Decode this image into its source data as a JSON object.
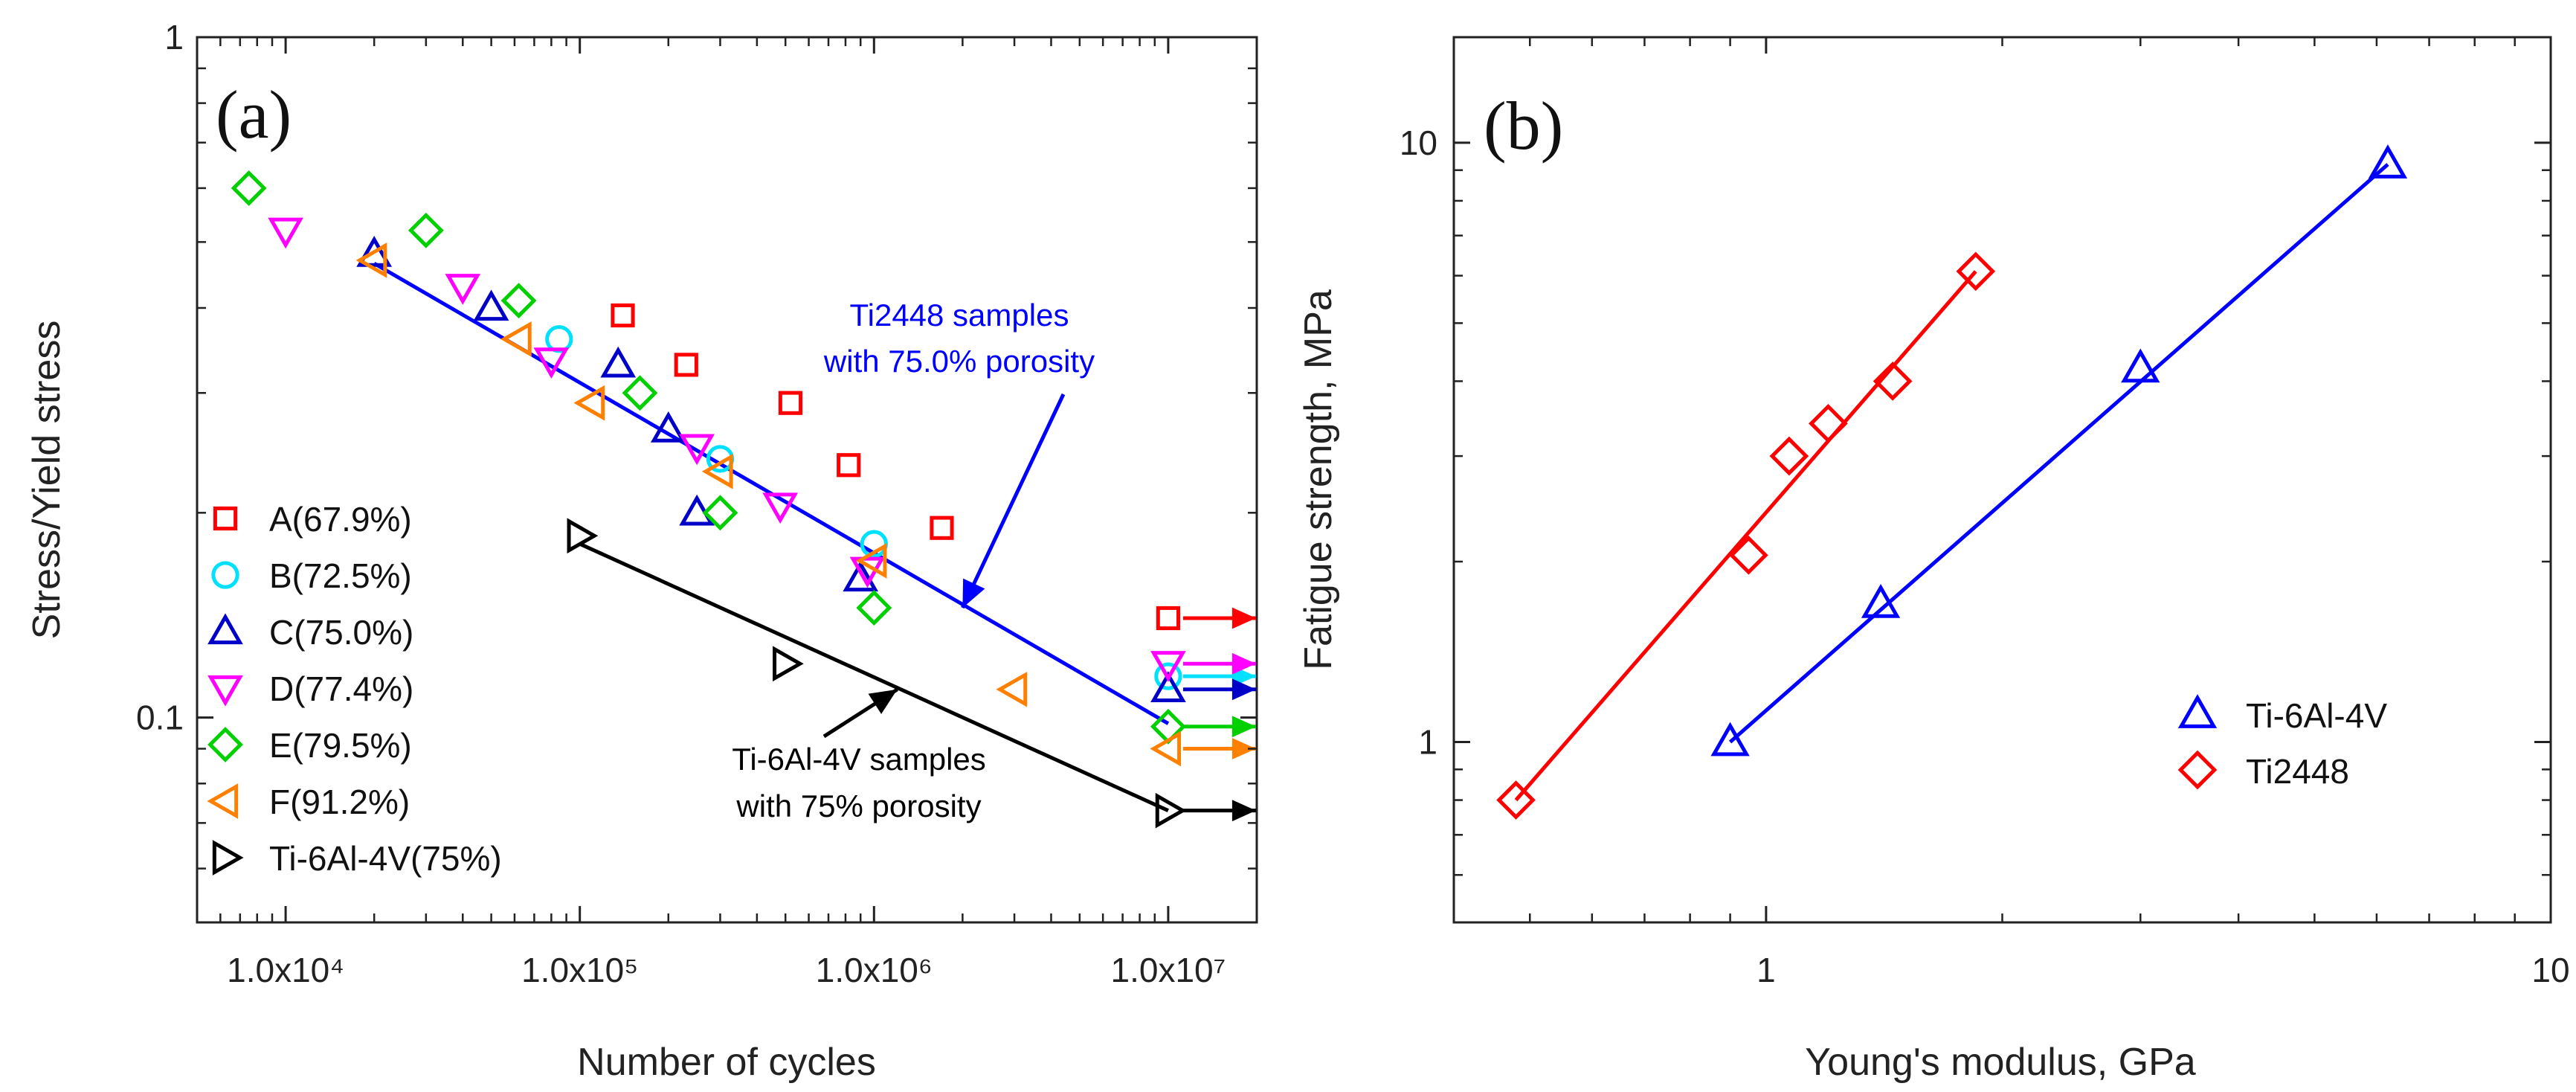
{
  "colors": {
    "A": "#ff0000",
    "B": "#00e0ff",
    "C": "#0000c8",
    "D": "#ff00ff",
    "E": "#00d000",
    "F": "#ff8000",
    "T": "#000000",
    "line_ti2448": "#0000ff",
    "line_ti64": "#000000",
    "b_ti64": "#0000ff",
    "b_ti2448": "#ff0000"
  },
  "chart_data": [
    {
      "panel_label": "(a)",
      "type": "scatter",
      "xscale": "log",
      "yscale": "log",
      "xlim": [
        5000,
        20000000
      ],
      "ylim": [
        0.05,
        1
      ],
      "xlabel": "Number of cycles",
      "ylabel": "Stress/Yield stress",
      "xticks": [
        {
          "v": 10000,
          "label": "1.0x10⁴"
        },
        {
          "v": 100000,
          "label": "1.0x10⁵"
        },
        {
          "v": 1000000,
          "label": "1.0x10⁶"
        },
        {
          "v": 10000000,
          "label": "1.0x10⁷"
        }
      ],
      "yticks": [
        {
          "v": 0.1,
          "label": "0.1"
        },
        {
          "v": 1,
          "label": "1"
        }
      ],
      "series": [
        {
          "key": "A",
          "name": "A(67.9%)",
          "marker": "square",
          "points": [
            [
              140000,
              0.39
            ],
            [
              230000,
              0.33
            ],
            [
              520000,
              0.29
            ],
            [
              820000,
              0.235
            ],
            [
              1700000,
              0.19
            ]
          ],
          "runouts": [
            [
              10000000,
              0.14
            ]
          ]
        },
        {
          "key": "B",
          "name": "B(72.5%)",
          "marker": "circle",
          "points": [
            [
              85000,
              0.36
            ],
            [
              300000,
              0.24
            ],
            [
              1000000,
              0.18
            ]
          ],
          "runouts": [
            [
              10000000,
              0.115
            ]
          ]
        },
        {
          "key": "C",
          "name": "C(75.0%)",
          "marker": "triangle-up",
          "points": [
            [
              20000,
              0.48
            ],
            [
              50000,
              0.4
            ],
            [
              135000,
              0.33
            ],
            [
              200000,
              0.265
            ],
            [
              250000,
              0.2
            ],
            [
              900000,
              0.16
            ]
          ],
          "runouts": [
            [
              10000000,
              0.11
            ]
          ]
        },
        {
          "key": "D",
          "name": "D(77.4%)",
          "marker": "triangle-down",
          "points": [
            [
              10000,
              0.52
            ],
            [
              40000,
              0.43
            ],
            [
              80000,
              0.335
            ],
            [
              250000,
              0.25
            ],
            [
              480000,
              0.205
            ],
            [
              950000,
              0.165
            ]
          ],
          "runouts": [
            [
              10000000,
              0.12
            ]
          ]
        },
        {
          "key": "E",
          "name": "E(79.5%)",
          "marker": "diamond",
          "points": [
            [
              7500,
              0.6
            ],
            [
              30000,
              0.52
            ],
            [
              62000,
              0.41
            ],
            [
              160000,
              0.3
            ],
            [
              300000,
              0.2
            ],
            [
              1000000,
              0.145
            ]
          ],
          "runouts": [
            [
              10000000,
              0.097
            ]
          ]
        },
        {
          "key": "F",
          "name": "F(91.2%)",
          "marker": "triangle-left",
          "points": [
            [
              20000,
              0.47
            ],
            [
              62000,
              0.36
            ],
            [
              110000,
              0.29
            ],
            [
              300000,
              0.23
            ],
            [
              1000000,
              0.17
            ],
            [
              3000000,
              0.11
            ]
          ],
          "runouts": [
            [
              10000000,
              0.09
            ]
          ]
        },
        {
          "key": "T",
          "name": "Ti-6Al-4V(75%)",
          "marker": "triangle-right",
          "points": [
            [
              100000,
              0.185
            ],
            [
              500000,
              0.12
            ]
          ],
          "runouts": [
            [
              10000000,
              0.073
            ]
          ]
        }
      ],
      "fits": [
        {
          "name": "Ti2448 samples with 75.0% porosity",
          "x": [
            20000,
            10000000
          ],
          "y": [
            0.465,
            0.098
          ],
          "color_key": "line_ti2448"
        },
        {
          "name": "Ti-6Al-4V samples with 75% porosity",
          "x": [
            100000,
            10000000
          ],
          "y": [
            0.18,
            0.073
          ],
          "color_key": "line_ti64"
        }
      ],
      "annotations": [
        {
          "lines": [
            "Ti2448 samples",
            "with 75.0% porosity"
          ],
          "color_key": "line_ti2448",
          "arrow_to": [
            2000000,
            0.145
          ]
        },
        {
          "lines": [
            "Ti-6Al-4V samples",
            "with 75% porosity"
          ],
          "color_key": "line_ti64",
          "arrow_to": [
            1200000,
            0.11
          ]
        }
      ]
    },
    {
      "panel_label": "(b)",
      "type": "scatter",
      "xscale": "log",
      "yscale": "log",
      "xlim": [
        0.4,
        10
      ],
      "ylim": [
        0.5,
        15
      ],
      "xlabel": "Young's modulus, GPa",
      "ylabel": "Fatigue strength, MPa",
      "xticks": [
        {
          "v": 1,
          "label": "1"
        },
        {
          "v": 10,
          "label": "10"
        }
      ],
      "yticks": [
        {
          "v": 1,
          "label": "1"
        },
        {
          "v": 10,
          "label": "10"
        }
      ],
      "series": [
        {
          "key": "b_ti64",
          "name": "Ti-6Al-4V",
          "marker": "triangle-up",
          "points": [
            [
              0.9,
              1.0
            ],
            [
              1.4,
              1.7
            ],
            [
              3.0,
              4.2
            ],
            [
              6.2,
              9.2
            ]
          ],
          "fit": [
            [
              0.9,
              1.0
            ],
            [
              6.2,
              9.2
            ]
          ]
        },
        {
          "key": "b_ti2448",
          "name": "Ti2448",
          "marker": "diamond",
          "points": [
            [
              0.48,
              0.8
            ],
            [
              0.95,
              2.05
            ],
            [
              1.07,
              3.0
            ],
            [
              1.2,
              3.4
            ],
            [
              1.45,
              4.0
            ],
            [
              1.85,
              6.1
            ]
          ],
          "fit": [
            [
              0.48,
              0.8
            ],
            [
              1.85,
              6.1
            ]
          ]
        }
      ]
    }
  ]
}
